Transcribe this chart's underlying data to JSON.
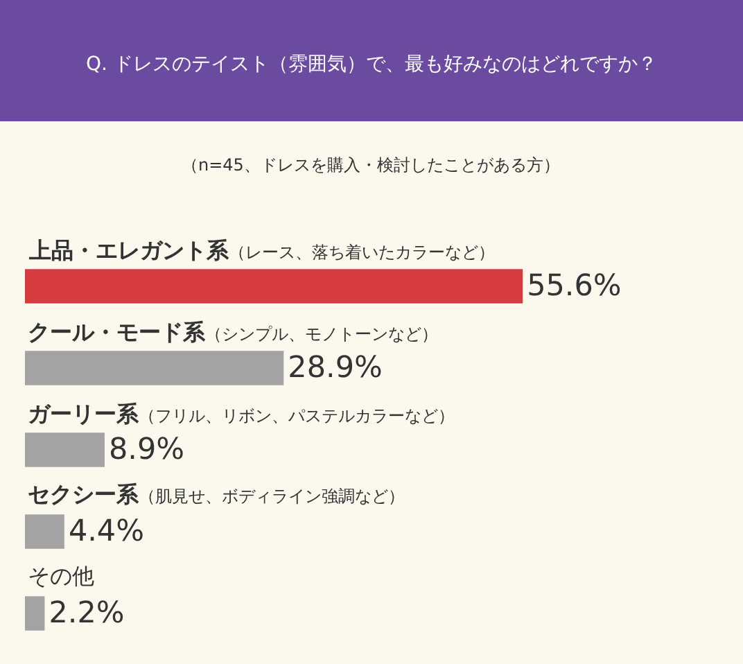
{
  "chart_data": {
    "type": "bar",
    "orientation": "horizontal",
    "title": "Q. ドレスのテイスト（雰囲気）で、最も好みなのはどれですか？",
    "subtitle": "（n=45、ドレスを購入・検討したことがある方）",
    "categories": [
      "上品・エレガント系（レース、落ち着いたカラーなど）",
      "クール・モード系（シンプル、モノトーンなど）",
      "ガーリー系（フリル、リボン、パステルカラーなど）",
      "セクシー系（肌見せ、ボディライン強調など）",
      "その他"
    ],
    "values": [
      55.6,
      28.9,
      8.9,
      4.4,
      2.2
    ],
    "colors": [
      "#d63b3f",
      "#a3a3a3",
      "#a3a3a3",
      "#a3a3a3",
      "#a3a3a3"
    ],
    "value_labels": [
      "55.6%",
      "28.9%",
      "8.9%",
      "4.4%",
      "2.2%"
    ],
    "legend": false
  }
}
